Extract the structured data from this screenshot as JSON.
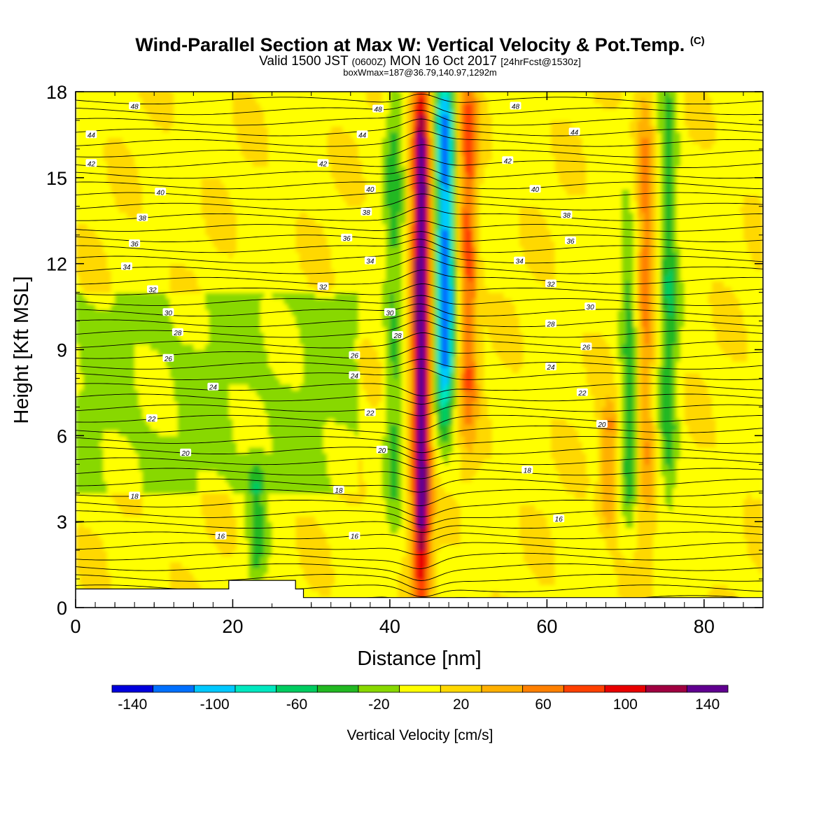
{
  "header": {
    "title": "Wind-Parallel Section at Max W: Vertical Velocity & Pot.Temp.",
    "title_mark": "(C)",
    "line2_a": "Valid 1500 JST",
    "line2_b": "(0600Z)",
    "line2_c": "MON 16 Oct 2017",
    "line2_d": "[24hrFcst@1530z]",
    "line3": "boxWmax=187@36.79,140.97,1292m"
  },
  "chart_data": {
    "type": "heatmap",
    "xlabel": "Distance [nm]",
    "ylabel": "Height [Kft MSL]",
    "xlim": [
      0,
      87.5
    ],
    "ylim": [
      0,
      18
    ],
    "x_ticks": [
      "0",
      "20",
      "40",
      "60",
      "80"
    ],
    "y_ticks": [
      "0",
      "3",
      "6",
      "9",
      "12",
      "15",
      "18"
    ],
    "colorbar": {
      "label": "Vertical Velocity [cm/s]",
      "tick_labels": [
        "-140",
        "-100",
        "-60",
        "-20",
        "20",
        "60",
        "100",
        "140"
      ],
      "colors": [
        "#0000dd",
        "#0070ff",
        "#00c8ff",
        "#00e8c0",
        "#00cc60",
        "#22b822",
        "#88d800",
        "#ffff00",
        "#ffd800",
        "#ffb000",
        "#ff8000",
        "#ff4000",
        "#e80000",
        "#a00040",
        "#600090"
      ]
    },
    "velocity_features": [
      {
        "x": 44.0,
        "y_min": 1.5,
        "y_max": 18,
        "peak_cm_s": 150,
        "note": "main updraft"
      },
      {
        "x": 47.0,
        "y_min": 7.5,
        "y_max": 18,
        "peak_cm_s": -130,
        "note": "downdraft"
      },
      {
        "x": 50.0,
        "y_min": 7.0,
        "y_max": 18,
        "peak_cm_s": 70
      },
      {
        "x": 40.5,
        "y_min": 4.0,
        "y_max": 18,
        "peak_cm_s": -40
      },
      {
        "x": 23.0,
        "y_min": 1.5,
        "y_max": 4.5,
        "peak_cm_s": -40
      },
      {
        "x": 68.0,
        "y_min": 3.5,
        "y_max": 6.5,
        "peak_cm_s": 50
      },
      {
        "x": 70.5,
        "y_min": 4.0,
        "y_max": 12.5,
        "peak_cm_s": -50
      },
      {
        "x": 72.5,
        "y_min": 4.0,
        "y_max": 18,
        "peak_cm_s": 50
      },
      {
        "x": 75.5,
        "y_min": 4.0,
        "y_max": 18,
        "peak_cm_s": -50
      }
    ],
    "theta_labels": [
      {
        "text": "48",
        "x": 7.5,
        "y": 17.5
      },
      {
        "text": "44",
        "x": 2.0,
        "y": 16.5
      },
      {
        "text": "42",
        "x": 2.0,
        "y": 15.5
      },
      {
        "text": "40",
        "x": 10.8,
        "y": 14.5
      },
      {
        "text": "38",
        "x": 8.5,
        "y": 13.6
      },
      {
        "text": "36",
        "x": 7.5,
        "y": 12.7
      },
      {
        "text": "34",
        "x": 6.5,
        "y": 11.9
      },
      {
        "text": "32",
        "x": 9.8,
        "y": 11.1
      },
      {
        "text": "30",
        "x": 11.8,
        "y": 10.3
      },
      {
        "text": "28",
        "x": 13.0,
        "y": 9.6
      },
      {
        "text": "26",
        "x": 11.8,
        "y": 8.7
      },
      {
        "text": "24",
        "x": 17.5,
        "y": 7.7
      },
      {
        "text": "22",
        "x": 9.7,
        "y": 6.6
      },
      {
        "text": "20",
        "x": 14.0,
        "y": 5.4
      },
      {
        "text": "18",
        "x": 7.5,
        "y": 3.9
      },
      {
        "text": "16",
        "x": 18.5,
        "y": 2.5
      },
      {
        "text": "48",
        "x": 38.5,
        "y": 17.4
      },
      {
        "text": "44",
        "x": 36.5,
        "y": 16.5
      },
      {
        "text": "42",
        "x": 31.5,
        "y": 15.5
      },
      {
        "text": "40",
        "x": 37.5,
        "y": 14.6
      },
      {
        "text": "38",
        "x": 37.0,
        "y": 13.8
      },
      {
        "text": "36",
        "x": 34.5,
        "y": 12.9
      },
      {
        "text": "34",
        "x": 37.5,
        "y": 12.1
      },
      {
        "text": "32",
        "x": 31.5,
        "y": 11.2
      },
      {
        "text": "30",
        "x": 40.0,
        "y": 10.3
      },
      {
        "text": "28",
        "x": 41.0,
        "y": 9.5
      },
      {
        "text": "26",
        "x": 35.5,
        "y": 8.8
      },
      {
        "text": "24",
        "x": 35.5,
        "y": 8.1
      },
      {
        "text": "22",
        "x": 37.5,
        "y": 6.8
      },
      {
        "text": "20",
        "x": 39.0,
        "y": 5.5
      },
      {
        "text": "18",
        "x": 33.5,
        "y": 4.1
      },
      {
        "text": "16",
        "x": 35.5,
        "y": 2.5
      },
      {
        "text": "48",
        "x": 56.0,
        "y": 17.5
      },
      {
        "text": "44",
        "x": 63.5,
        "y": 16.6
      },
      {
        "text": "42",
        "x": 55.0,
        "y": 15.6
      },
      {
        "text": "40",
        "x": 58.5,
        "y": 14.6
      },
      {
        "text": "38",
        "x": 62.5,
        "y": 13.7
      },
      {
        "text": "36",
        "x": 63.0,
        "y": 12.8
      },
      {
        "text": "34",
        "x": 56.5,
        "y": 12.1
      },
      {
        "text": "32",
        "x": 60.5,
        "y": 11.3
      },
      {
        "text": "30",
        "x": 65.5,
        "y": 10.5
      },
      {
        "text": "28",
        "x": 60.5,
        "y": 9.9
      },
      {
        "text": "26",
        "x": 65.0,
        "y": 9.1
      },
      {
        "text": "24",
        "x": 60.5,
        "y": 8.4
      },
      {
        "text": "22",
        "x": 64.5,
        "y": 7.5
      },
      {
        "text": "20",
        "x": 67.0,
        "y": 6.4
      },
      {
        "text": "18",
        "x": 57.5,
        "y": 4.8
      },
      {
        "text": "16",
        "x": 61.5,
        "y": 3.1
      }
    ],
    "terrain": {
      "x": [
        0,
        19.5,
        19.5,
        28.0,
        28.0,
        29.0,
        29.0,
        87.5
      ],
      "y": [
        0.65,
        0.65,
        0.95,
        0.95,
        0.65,
        0.65,
        0.35,
        0.35
      ]
    }
  }
}
